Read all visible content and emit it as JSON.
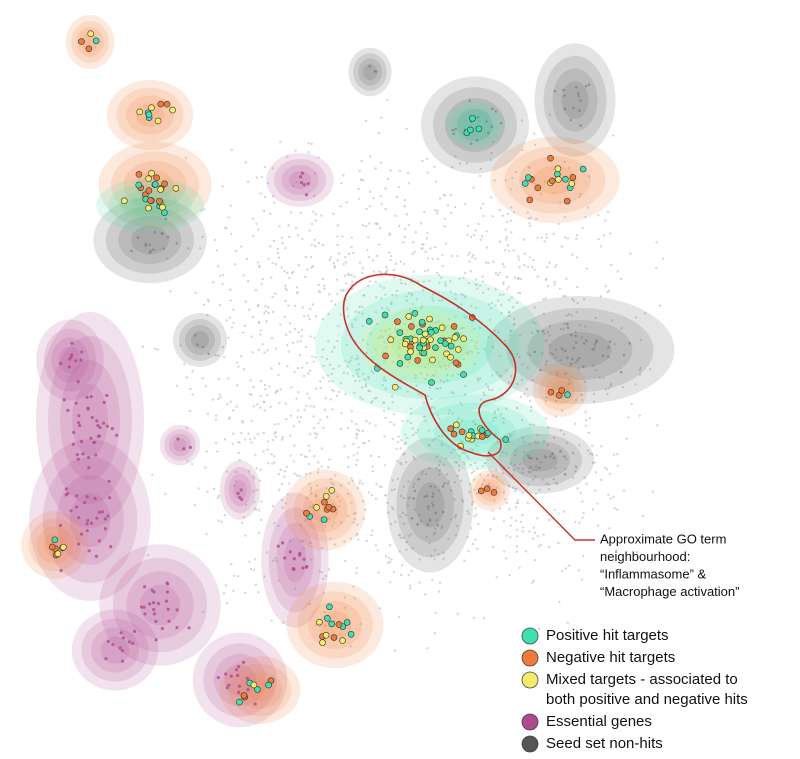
{
  "annotation": {
    "lines": [
      "Approximate GO term",
      "neighbourhood:",
      "“Inflammasome” &",
      "“Macrophage activation”"
    ],
    "color": "#c9302c"
  },
  "legend": [
    {
      "lines": [
        "Positive hit targets"
      ],
      "color": "#3fe0b0"
    },
    {
      "lines": [
        "Negative hit targets"
      ],
      "color": "#f07a3a"
    },
    {
      "lines": [
        "Mixed targets - associated to",
        "both positive and negative hits"
      ],
      "color": "#f2ec6a"
    },
    {
      "lines": [
        "Essential genes"
      ],
      "color": "#b04a8e"
    },
    {
      "lines": [
        "Seed set non-hits"
      ],
      "color": "#555555"
    }
  ]
}
